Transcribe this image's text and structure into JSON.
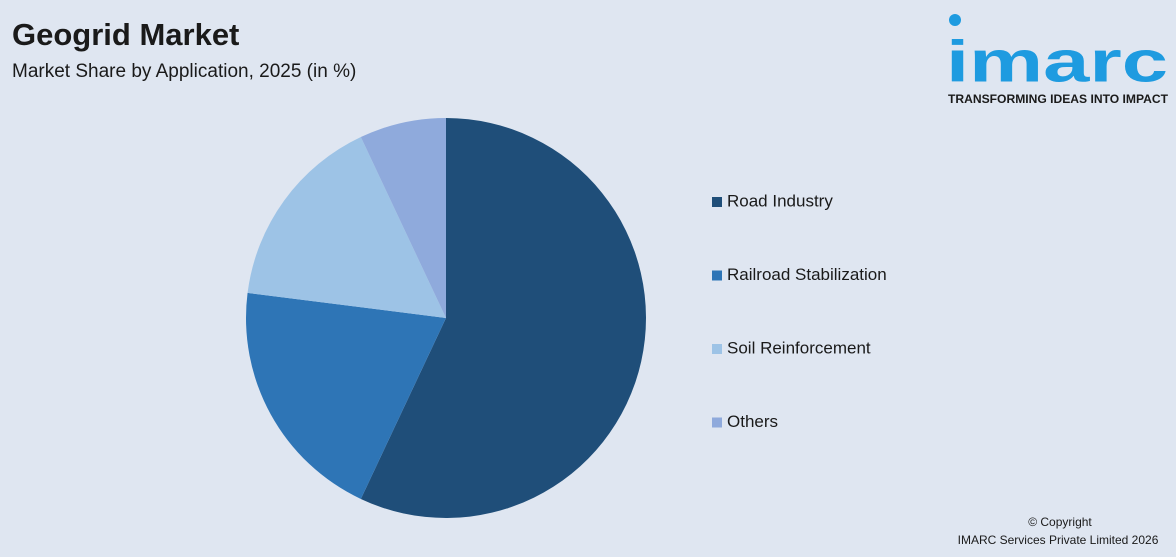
{
  "chart_data": {
    "type": "pie",
    "title": "Geogrid Market",
    "subtitle": "Market Share by Application, 2025 (in %)",
    "categories": [
      "Road Industry",
      "Railroad Stabilization",
      "Soil Reinforcement",
      "Others"
    ],
    "values": [
      57,
      20,
      16,
      7
    ],
    "colors": [
      "#1f4e79",
      "#2e75b6",
      "#9dc3e6",
      "#8faadc"
    ],
    "legend": "right"
  },
  "logo": {
    "name": "imarc",
    "tagline": "TRANSFORMING IDEAS INTO IMPACT"
  },
  "footer": {
    "copyright": "© Copyright",
    "company": "IMARC Services Private Limited 2026"
  }
}
